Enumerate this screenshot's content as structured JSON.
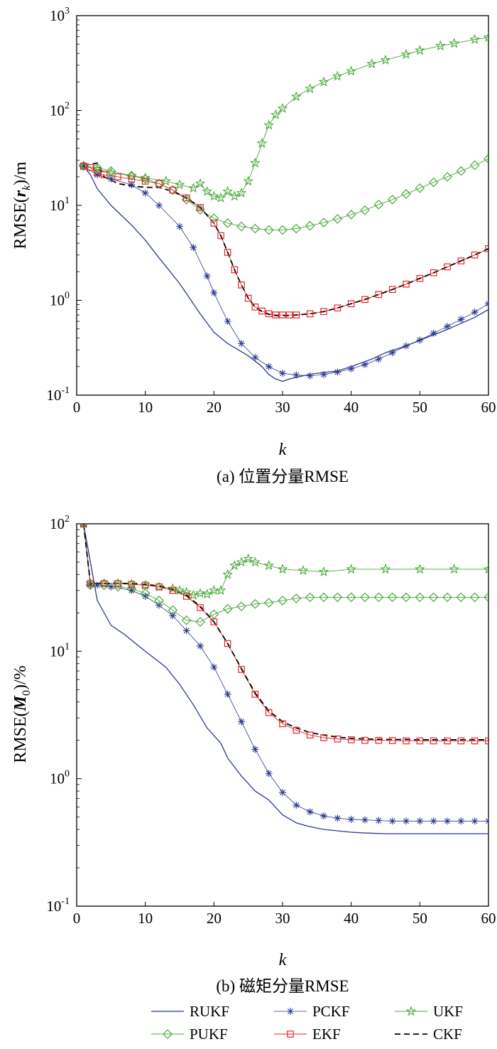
{
  "legend": [
    "RUKF",
    "PCKF",
    "UKF",
    "PUKF",
    "EKF",
    "CKF"
  ],
  "colors": {
    "RUKF": "#2b3990",
    "PCKF": "#2b3990",
    "UKF": "#4aa83a",
    "PUKF": "#4aa83a",
    "EKF": "#e3262b",
    "CKF": "#000000"
  },
  "chart_data": [
    {
      "type": "line",
      "yscale": "log",
      "caption": "(a) 位置分量RMSE",
      "xlabel": "k",
      "ylabel": "RMSE(r_k)/m",
      "xlim": [
        0,
        60
      ],
      "ylim": [
        0.1,
        1000
      ],
      "xticks": [
        "0",
        "10",
        "20",
        "30",
        "40",
        "50",
        "60"
      ],
      "ytick_bases": [
        "10",
        "10",
        "10",
        "10",
        "10"
      ],
      "ytick_exps": [
        "-1",
        "0",
        "1",
        "2",
        "3"
      ],
      "series": [
        {
          "name": "RUKF",
          "marker": "none",
          "x": [
            1,
            2,
            3,
            5,
            8,
            10,
            12,
            15,
            18,
            20,
            22,
            25,
            27,
            28,
            29,
            30,
            31,
            33,
            35,
            38,
            40,
            43,
            45,
            48,
            50,
            53,
            55,
            58,
            60
          ],
          "y": [
            26,
            21,
            15,
            10,
            6.2,
            4.3,
            2.8,
            1.5,
            0.72,
            0.46,
            0.35,
            0.26,
            0.2,
            0.165,
            0.148,
            0.14,
            0.148,
            0.16,
            0.17,
            0.18,
            0.2,
            0.24,
            0.28,
            0.33,
            0.38,
            0.46,
            0.53,
            0.66,
            0.8
          ]
        },
        {
          "name": "PCKF",
          "marker": "asterisk",
          "x": [
            1,
            3,
            5,
            8,
            10,
            12,
            15,
            17,
            19,
            20,
            22,
            24,
            26,
            28,
            30,
            32,
            34,
            36,
            38,
            40,
            42,
            44,
            46,
            48,
            50,
            52,
            54,
            56,
            58,
            60
          ],
          "y": [
            26,
            21,
            19,
            16.5,
            13.5,
            10,
            6,
            3.6,
            1.8,
            1.2,
            0.6,
            0.35,
            0.25,
            0.2,
            0.17,
            0.163,
            0.16,
            0.165,
            0.175,
            0.19,
            0.21,
            0.24,
            0.28,
            0.33,
            0.38,
            0.45,
            0.53,
            0.63,
            0.75,
            0.92
          ]
        },
        {
          "name": "UKF",
          "marker": "star",
          "x": [
            1,
            3,
            5,
            8,
            10,
            13,
            15,
            17,
            18,
            19,
            20,
            21,
            22,
            23,
            24,
            25,
            26,
            27,
            28,
            29,
            30,
            32,
            34,
            36,
            38,
            40,
            43,
            45,
            48,
            50,
            53,
            55,
            58,
            60
          ],
          "y": [
            26,
            24,
            22,
            20.5,
            19.5,
            18,
            16.5,
            15.2,
            17,
            14,
            12.5,
            12,
            14,
            12.5,
            13.5,
            18,
            28,
            45,
            70,
            90,
            105,
            140,
            170,
            200,
            230,
            260,
            310,
            340,
            390,
            430,
            480,
            510,
            560,
            590
          ]
        },
        {
          "name": "PUKF",
          "marker": "diamond",
          "x": [
            1,
            3,
            5,
            8,
            10,
            12,
            14,
            16,
            18,
            20,
            22,
            24,
            26,
            28,
            30,
            32,
            34,
            36,
            38,
            40,
            42,
            44,
            46,
            48,
            50,
            52,
            54,
            56,
            58,
            60
          ],
          "y": [
            26,
            25,
            23,
            20.5,
            19,
            17,
            14.5,
            11.5,
            9,
            7.3,
            6.5,
            6,
            5.7,
            5.5,
            5.5,
            5.7,
            6.1,
            6.6,
            7.2,
            8,
            8.9,
            10.2,
            11.5,
            13.2,
            15.2,
            17.5,
            20,
            23,
            26.5,
            31
          ]
        },
        {
          "name": "EKF",
          "marker": "square",
          "x": [
            1,
            2,
            3,
            4,
            6,
            8,
            10,
            12,
            14,
            16,
            18,
            20,
            21,
            22,
            23,
            24,
            25,
            26,
            27,
            28,
            29,
            30,
            31,
            32,
            34,
            36,
            38,
            40,
            42,
            44,
            46,
            48,
            50,
            52,
            54,
            56,
            58,
            60
          ],
          "y": [
            26,
            25,
            22,
            21,
            20,
            19,
            18,
            17,
            14.5,
            12,
            9.5,
            6.5,
            4.8,
            3.2,
            2.1,
            1.45,
            1.05,
            0.85,
            0.77,
            0.72,
            0.7,
            0.7,
            0.7,
            0.7,
            0.72,
            0.76,
            0.83,
            0.92,
            1.02,
            1.15,
            1.3,
            1.48,
            1.7,
            1.95,
            2.25,
            2.6,
            3,
            3.5
          ]
        },
        {
          "name": "CKF",
          "marker": "none",
          "x": [
            1,
            2,
            3,
            4,
            6,
            8,
            10,
            12,
            14,
            16,
            18,
            20,
            21,
            22,
            23,
            24,
            25,
            26,
            27,
            28,
            29,
            30,
            31,
            32,
            34,
            36,
            38,
            40,
            42,
            44,
            46,
            48,
            50,
            52,
            54,
            56,
            58,
            60
          ],
          "y": [
            27,
            27,
            28,
            20,
            17,
            16,
            15.5,
            15.5,
            14,
            12,
            9.5,
            6.5,
            4.8,
            3.2,
            2.1,
            1.45,
            1.05,
            0.85,
            0.76,
            0.71,
            0.69,
            0.69,
            0.69,
            0.7,
            0.72,
            0.76,
            0.83,
            0.92,
            1.02,
            1.15,
            1.3,
            1.48,
            1.7,
            1.95,
            2.25,
            2.6,
            3,
            3.5
          ]
        }
      ]
    },
    {
      "type": "line",
      "yscale": "log",
      "caption": "(b) 磁矩分量RMSE",
      "xlabel": "k",
      "ylabel": "RMSE(M_0)/%",
      "xlim": [
        0,
        60
      ],
      "ylim": [
        0.1,
        100
      ],
      "xticks": [
        "0",
        "10",
        "20",
        "30",
        "40",
        "50",
        "60"
      ],
      "ytick_bases": [
        "10",
        "10",
        "10",
        "10"
      ],
      "ytick_exps": [
        "-1",
        "0",
        "1",
        "2"
      ],
      "series": [
        {
          "name": "RUKF",
          "marker": "none",
          "x": [
            1,
            2,
            3,
            5,
            7,
            10,
            13,
            15,
            17,
            19,
            21,
            22,
            24,
            26,
            28,
            30,
            32,
            34,
            36,
            38,
            40,
            42,
            45,
            50,
            55,
            60
          ],
          "y": [
            100,
            50,
            25,
            16,
            13.5,
            10,
            7.5,
            5.5,
            3.8,
            2.5,
            1.9,
            1.45,
            1.05,
            0.8,
            0.68,
            0.52,
            0.45,
            0.42,
            0.4,
            0.39,
            0.38,
            0.375,
            0.37,
            0.37,
            0.37,
            0.37
          ]
        },
        {
          "name": "PCKF",
          "marker": "asterisk",
          "x": [
            1,
            2,
            3,
            5,
            8,
            10,
            12,
            14,
            16,
            18,
            20,
            22,
            24,
            26,
            28,
            30,
            32,
            34,
            36,
            38,
            40,
            42,
            44,
            46,
            48,
            50,
            52,
            54,
            56,
            58,
            60
          ],
          "y": [
            100,
            33,
            33,
            32,
            30,
            27,
            23,
            19,
            14.5,
            11,
            7.5,
            4.6,
            2.8,
            1.7,
            1.1,
            0.78,
            0.62,
            0.55,
            0.51,
            0.49,
            0.48,
            0.475,
            0.47,
            0.465,
            0.465,
            0.465,
            0.465,
            0.465,
            0.465,
            0.465,
            0.465
          ]
        },
        {
          "name": "UKF",
          "marker": "star",
          "x": [
            1,
            2,
            4,
            6,
            8,
            10,
            12,
            14,
            15,
            16,
            17,
            18,
            19,
            20,
            21,
            22,
            23,
            24,
            25,
            26,
            28,
            30,
            33,
            36,
            40,
            45,
            50,
            55,
            60
          ],
          "y": [
            100,
            34,
            34,
            34,
            33.5,
            33,
            32,
            31,
            30,
            29,
            27.5,
            28.5,
            28,
            30,
            30,
            40,
            47,
            50,
            53,
            50,
            47,
            44,
            43,
            42,
            44,
            44,
            44,
            44,
            44
          ]
        },
        {
          "name": "PUKF",
          "marker": "diamond",
          "x": [
            1,
            2,
            4,
            6,
            8,
            10,
            12,
            14,
            16,
            18,
            20,
            22,
            24,
            26,
            28,
            30,
            32,
            34,
            36,
            38,
            40,
            42,
            44,
            46,
            48,
            50,
            52,
            54,
            56,
            58,
            60
          ],
          "y": [
            100,
            33,
            33,
            32,
            31,
            28.5,
            25,
            21,
            17.5,
            17,
            19.5,
            21.5,
            22.5,
            23.5,
            24,
            25,
            26,
            26.5,
            26.5,
            26.5,
            26.5,
            26.5,
            26.5,
            26.5,
            26.5,
            26.5,
            26.5,
            26.5,
            26.5,
            26.5,
            26.5
          ]
        },
        {
          "name": "EKF",
          "marker": "square",
          "x": [
            1,
            2,
            4,
            6,
            8,
            10,
            12,
            14,
            16,
            18,
            20,
            22,
            24,
            26,
            28,
            30,
            32,
            34,
            36,
            38,
            40,
            42,
            44,
            46,
            48,
            50,
            52,
            54,
            56,
            58,
            60
          ],
          "y": [
            100,
            34,
            34,
            34,
            33.5,
            33,
            32,
            30,
            27,
            22,
            17,
            11.5,
            7.2,
            4.6,
            3.3,
            2.7,
            2.4,
            2.2,
            2.1,
            2.05,
            2.02,
            2,
            2,
            1.99,
            1.98,
            1.98,
            1.98,
            1.98,
            1.98,
            1.98,
            1.98
          ]
        },
        {
          "name": "CKF",
          "marker": "none",
          "x": [
            1,
            2,
            4,
            6,
            8,
            10,
            12,
            14,
            16,
            18,
            20,
            22,
            24,
            26,
            28,
            30,
            32,
            34,
            36,
            38,
            40,
            42,
            44,
            46,
            48,
            50,
            52,
            54,
            56,
            58,
            60
          ],
          "y": [
            100,
            34,
            34,
            34,
            34,
            33.5,
            32.5,
            30.5,
            27.5,
            22.5,
            17,
            11.5,
            7.3,
            4.7,
            3.4,
            2.8,
            2.5,
            2.3,
            2.2,
            2.12,
            2.07,
            2.05,
            2.04,
            2.03,
            2.03,
            2.02,
            2.02,
            2.02,
            2.02,
            2.02,
            2.02
          ]
        }
      ]
    }
  ]
}
